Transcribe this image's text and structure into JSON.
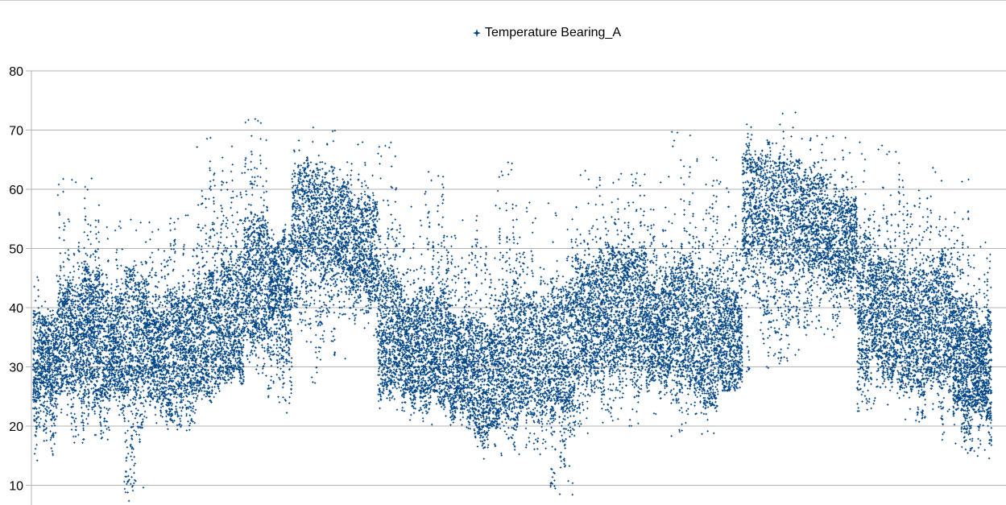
{
  "chart_data": {
    "type": "scatter",
    "title": "",
    "xlabel": "",
    "ylabel": "",
    "ylim": [
      8,
      80
    ],
    "y_ticks": [
      "10",
      "20",
      "30",
      "40",
      "50",
      "60",
      "70",
      "80"
    ],
    "grid": true,
    "legend_position": "top-center",
    "n_points": 30000,
    "series": [
      {
        "name": "Temperature Bearing_A",
        "color": "#004586",
        "marker": "four-point-star",
        "values_note_free": true,
        "segments": [
          {
            "x_range": [
              0,
              2.5
            ],
            "low": 14,
            "high": 47,
            "center": 32
          },
          {
            "x_range": [
              2.5,
              5
            ],
            "low": 17,
            "high": 62,
            "center": 35
          },
          {
            "x_range": [
              5,
              7
            ],
            "low": 17,
            "high": 63,
            "center": 36
          },
          {
            "x_range": [
              7,
              9.5
            ],
            "low": 16,
            "high": 55,
            "center": 34
          },
          {
            "x_range": [
              9.5,
              12
            ],
            "low": 7,
            "high": 55,
            "center": 36
          },
          {
            "x_range": [
              12,
              14.5
            ],
            "low": 19,
            "high": 62,
            "center": 32
          },
          {
            "x_range": [
              14.5,
              17
            ],
            "low": 19,
            "high": 57,
            "center": 34
          },
          {
            "x_range": [
              17,
              19.5
            ],
            "low": 24,
            "high": 69,
            "center": 35
          },
          {
            "x_range": [
              19.5,
              22
            ],
            "low": 25,
            "high": 68,
            "center": 38
          },
          {
            "x_range": [
              22,
              24.5
            ],
            "low": 28,
            "high": 72,
            "center": 45
          },
          {
            "x_range": [
              24.5,
              27
            ],
            "low": 22,
            "high": 55,
            "center": 45
          },
          {
            "x_range": [
              27,
              30
            ],
            "low": 27,
            "high": 71,
            "center": 56
          },
          {
            "x_range": [
              30,
              33
            ],
            "low": 30,
            "high": 70,
            "center": 54
          },
          {
            "x_range": [
              33,
              36
            ],
            "low": 35,
            "high": 70,
            "center": 50
          },
          {
            "x_range": [
              36,
              38.5
            ],
            "low": 22,
            "high": 68,
            "center": 36
          },
          {
            "x_range": [
              38.5,
              41
            ],
            "low": 20,
            "high": 60,
            "center": 33
          },
          {
            "x_range": [
              41,
              43.5
            ],
            "low": 20,
            "high": 64,
            "center": 33
          },
          {
            "x_range": [
              43.5,
              46
            ],
            "low": 18,
            "high": 56,
            "center": 30
          },
          {
            "x_range": [
              46,
              48.5
            ],
            "low": 14,
            "high": 60,
            "center": 28
          },
          {
            "x_range": [
              48.5,
              51
            ],
            "low": 14,
            "high": 65,
            "center": 32
          },
          {
            "x_range": [
              51,
              54
            ],
            "low": 15,
            "high": 58,
            "center": 32
          },
          {
            "x_range": [
              54,
              56.5
            ],
            "low": 8,
            "high": 57,
            "center": 33
          },
          {
            "x_range": [
              56.5,
              59
            ],
            "low": 18,
            "high": 64,
            "center": 38
          },
          {
            "x_range": [
              59,
              61.5
            ],
            "low": 20,
            "high": 63,
            "center": 40
          },
          {
            "x_range": [
              61.5,
              64
            ],
            "low": 20,
            "high": 64,
            "center": 40
          },
          {
            "x_range": [
              64,
              66.5
            ],
            "low": 22,
            "high": 63,
            "center": 36
          },
          {
            "x_range": [
              66.5,
              69
            ],
            "low": 18,
            "high": 70,
            "center": 38
          },
          {
            "x_range": [
              69,
              71.5
            ],
            "low": 18,
            "high": 67,
            "center": 35
          },
          {
            "x_range": [
              71.5,
              74
            ],
            "low": 26,
            "high": 63,
            "center": 34
          },
          {
            "x_range": [
              74,
              77
            ],
            "low": 29,
            "high": 71,
            "center": 58
          },
          {
            "x_range": [
              77,
              80
            ],
            "low": 30,
            "high": 73,
            "center": 56
          },
          {
            "x_range": [
              80,
              83
            ],
            "low": 35,
            "high": 71,
            "center": 55
          },
          {
            "x_range": [
              83,
              86
            ],
            "low": 35,
            "high": 69,
            "center": 52
          },
          {
            "x_range": [
              86,
              88.5
            ],
            "low": 22,
            "high": 68,
            "center": 40
          },
          {
            "x_range": [
              88.5,
              91
            ],
            "low": 22,
            "high": 68,
            "center": 38
          },
          {
            "x_range": [
              91,
              93.5
            ],
            "low": 20,
            "high": 63,
            "center": 36
          },
          {
            "x_range": [
              93.5,
              96
            ],
            "low": 16,
            "high": 64,
            "center": 38
          },
          {
            "x_range": [
              96,
              98
            ],
            "low": 15,
            "high": 62,
            "center": 32
          },
          {
            "x_range": [
              98,
              100
            ],
            "low": 14,
            "high": 53,
            "center": 30
          }
        ]
      }
    ]
  }
}
